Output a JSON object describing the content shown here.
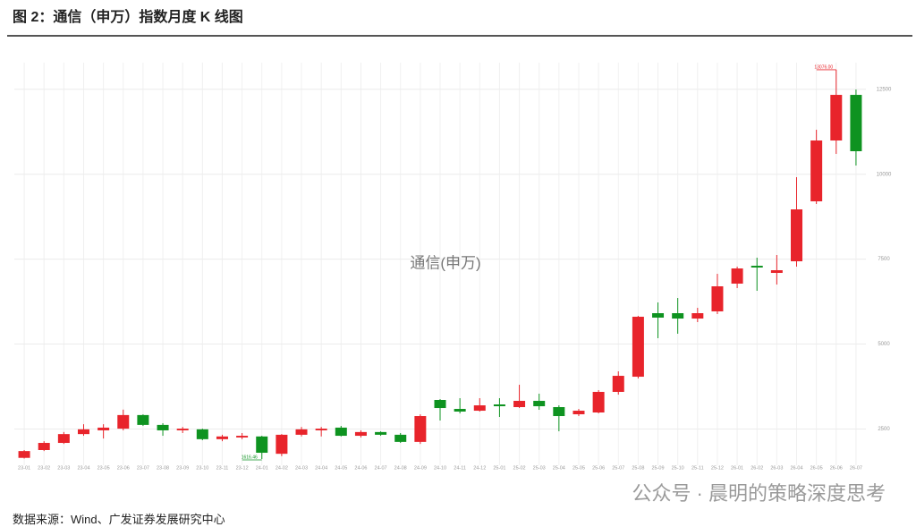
{
  "chart_data": {
    "type": "candlestick",
    "title": "图 2：通信（申万）指数月度 K 线图",
    "series_label": "通信(申万)",
    "source": "数据来源：Wind、广发证券发展研究中心",
    "watermark": "公众号 · 晨明的策略深度思考",
    "categories": [
      "23-01",
      "23-02",
      "23-03",
      "23-04",
      "23-05",
      "23-06",
      "23-07",
      "23-08",
      "23-09",
      "23-10",
      "23-11",
      "23-12",
      "24-01",
      "24-02",
      "24-03",
      "24-04",
      "24-05",
      "24-06",
      "24-07",
      "24-08",
      "24-09",
      "24-10",
      "24-11",
      "24-12",
      "25-01",
      "25-02",
      "25-03",
      "25-04",
      "25-05",
      "25-06",
      "25-07",
      "25-08",
      "25-09",
      "25-10",
      "25-11",
      "25-12",
      "26-01",
      "26-02",
      "26-03",
      "26-04",
      "26-05",
      "26-06",
      "26-07"
    ],
    "open": [
      1650,
      1880,
      2090,
      2350,
      2460,
      2510,
      2910,
      2620,
      2460,
      2490,
      2200,
      2250,
      2280,
      1770,
      2330,
      2460,
      2540,
      2300,
      2410,
      2330,
      2120,
      3355,
      3091,
      3038,
      3223,
      3144,
      3328,
      3144,
      2933,
      2986,
      3592,
      4039,
      5909,
      5909,
      5751,
      5962,
      6779,
      7305,
      7095,
      7437,
      9202,
      10993,
      12336
    ],
    "high": [
      1880,
      2140,
      2410,
      2640,
      2640,
      3070,
      2930,
      2670,
      2560,
      2510,
      2330,
      2380,
      2300,
      2350,
      2560,
      2560,
      2590,
      2460,
      2430,
      2380,
      2930,
      3380,
      3407,
      3407,
      3407,
      3802,
      3539,
      3196,
      3091,
      3644,
      4197,
      5830,
      6226,
      6357,
      6067,
      7068,
      7279,
      7543,
      7622,
      9913,
      11309,
      13076,
      12494
    ],
    "low": [
      1630,
      1850,
      2060,
      2300,
      2220,
      2460,
      2590,
      2300,
      2380,
      2170,
      2140,
      2200,
      1616.46,
      1700,
      2280,
      2280,
      2280,
      2250,
      2300,
      2090,
      2060,
      2750,
      2959,
      3012,
      2854,
      3117,
      3065,
      2433,
      2880,
      2959,
      3512,
      3987,
      5172,
      5304,
      5646,
      5883,
      6647,
      6568,
      6752,
      7279,
      9123,
      10598,
      10256
    ],
    "close": [
      1850,
      2090,
      2350,
      2490,
      2540,
      2910,
      2620,
      2460,
      2510,
      2200,
      2280,
      2300,
      1800,
      2330,
      2490,
      2510,
      2300,
      2410,
      2330,
      2120,
      2880,
      3117,
      3012,
      3196,
      3170,
      3328,
      3170,
      2880,
      3038,
      3592,
      4065,
      5804,
      5778,
      5751,
      5909,
      6700,
      7226,
      7253,
      7174,
      8965,
      10993,
      12336,
      10677
    ],
    "up_color": "#e8242b",
    "down_color": "#0e9320",
    "ylim": [
      1432,
      13285
    ],
    "yticks": [
      2500,
      5000,
      7500,
      10000,
      12500
    ],
    "grid": true,
    "annotations": [
      {
        "text": "13076.00",
        "category": "26-06",
        "value": 13076
      },
      {
        "text": "1616.46",
        "category": "24-01",
        "value": 1616.46
      }
    ]
  }
}
